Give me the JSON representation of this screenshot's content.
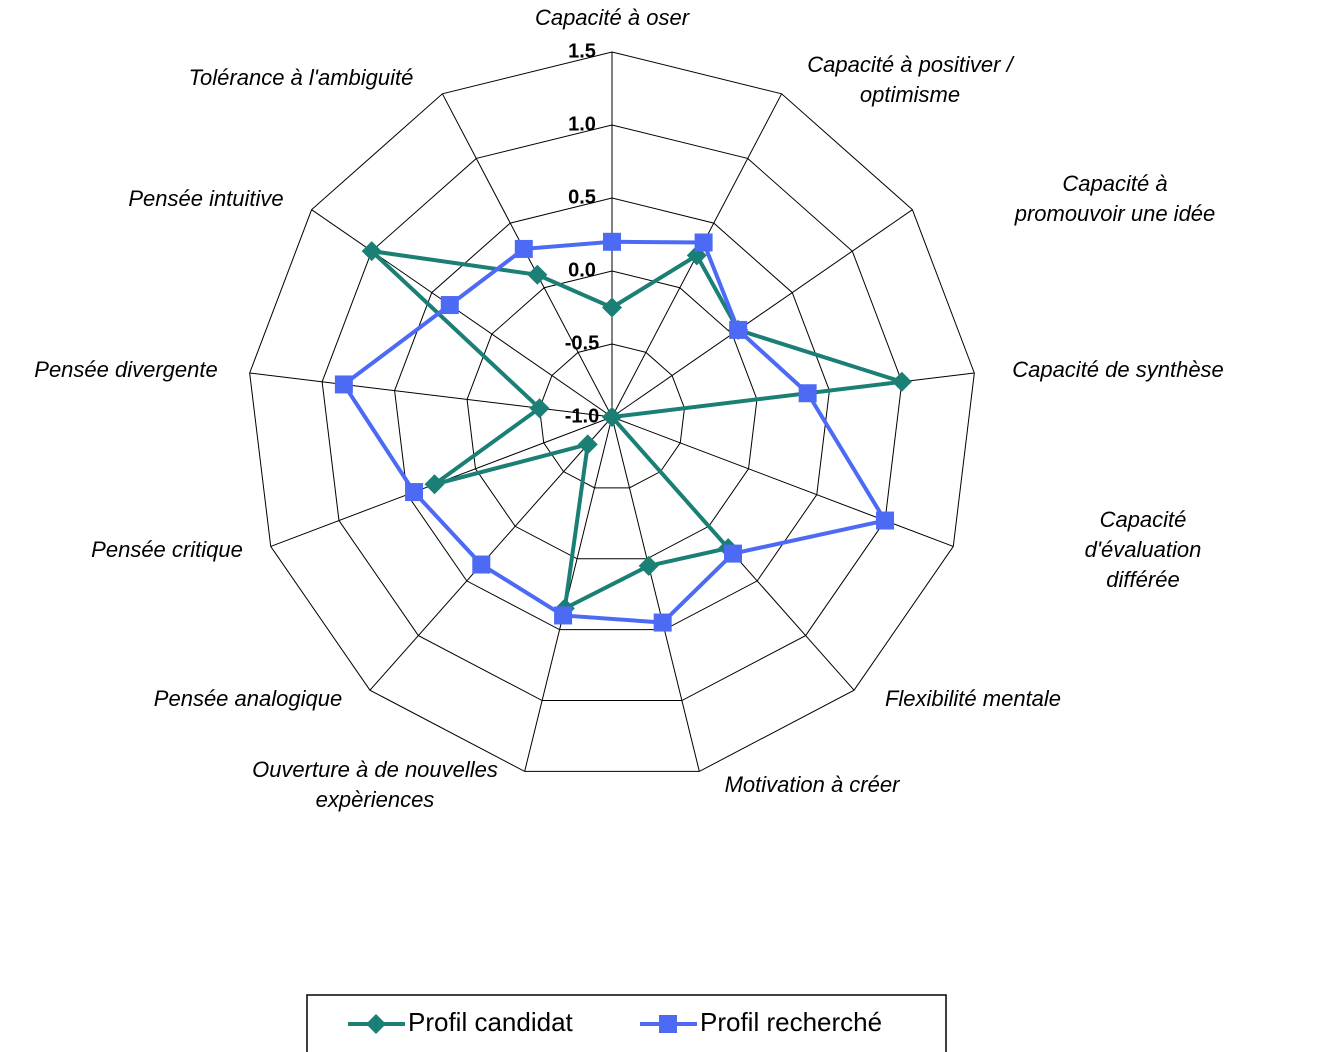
{
  "chart_data": {
    "type": "radar",
    "categories": [
      "Capacité à oser",
      "Capacité à positiver /\noptimisme",
      "Capacité à promouvoir une idée",
      "Capacité de synthèse",
      "Capacité d'évaluation différée",
      "Flexibilité mentale",
      "Motivation à créer",
      "Ouverture à de nouvelles\nexpèriences",
      "Pensée analogique",
      "Pensée critique",
      "Pensée divergente",
      "Pensée intuitive",
      "Tolérance à l'ambiguité"
    ],
    "series": [
      {
        "name": "Profil candidat",
        "color": "#1a7f74",
        "marker": "diamond",
        "values": [
          -0.25,
          0.25,
          0.05,
          1.0,
          -1.0,
          0.2,
          0.05,
          0.35,
          -0.75,
          0.3,
          -0.5,
          1.0,
          0.1
        ]
      },
      {
        "name": "Profil recherché",
        "color": "#4d6af5",
        "marker": "square",
        "values": [
          0.2,
          0.35,
          0.05,
          0.35,
          1.0,
          0.25,
          0.45,
          0.4,
          0.35,
          0.45,
          0.85,
          0.35,
          0.3
        ]
      }
    ],
    "rlim": [
      -1.0,
      1.5
    ],
    "rticks": [
      {
        "value": -1.0,
        "label": "-1.0"
      },
      -0.5,
      {
        "value": 0.0,
        "label": "0.0"
      },
      0.5,
      {
        "value": 1.0,
        "label": "1.0"
      },
      1.5
    ],
    "grid": true,
    "legend": "bottom"
  }
}
